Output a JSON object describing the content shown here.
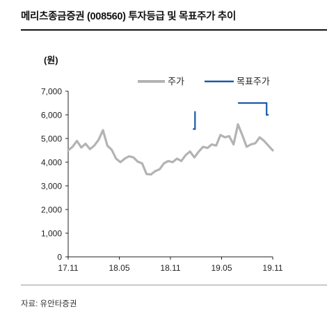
{
  "title": "메리츠종금증권 (008560) 투자등급 및 목표주가 추이",
  "source": "자료: 유안타증권",
  "chart_data": {
    "type": "line",
    "unit_label": "(원)",
    "x_ticks": [
      "17.11",
      "18.05",
      "18.11",
      "19.05",
      "19.11"
    ],
    "ylim": [
      0,
      7000
    ],
    "y_ticks": [
      0,
      1000,
      2000,
      3000,
      4000,
      5000,
      6000,
      7000
    ],
    "y_tick_labels": [
      "0",
      "1,000",
      "2,000",
      "3,000",
      "4,000",
      "5,000",
      "6,000",
      "7,000"
    ],
    "legend_position": "top-right",
    "series": [
      {
        "name": "주가",
        "color": "#b3b3b3",
        "values": [
          4500,
          4650,
          4900,
          4620,
          4780,
          4550,
          4700,
          4950,
          5350,
          4700,
          4520,
          4150,
          4000,
          4150,
          4250,
          4200,
          4020,
          3950,
          3500,
          3480,
          3620,
          3700,
          3950,
          4050,
          4000,
          4150,
          4050,
          4300,
          4450,
          4200,
          4450,
          4650,
          4600,
          4750,
          4700,
          5150,
          5050,
          5100,
          4750,
          5600,
          5150,
          4650,
          4750,
          4800,
          5050,
          4900,
          4700,
          4500
        ]
      },
      {
        "name": "목표주가",
        "color": "#1a5aa8",
        "segments": [
          [
            [
              0.61,
              5400
            ],
            [
              0.62,
              5400
            ],
            [
              0.62,
              6150
            ]
          ],
          [
            [
              0.83,
              6500
            ],
            [
              0.97,
              6500
            ],
            [
              0.97,
              6000
            ],
            [
              0.98,
              6000
            ]
          ]
        ]
      }
    ]
  }
}
